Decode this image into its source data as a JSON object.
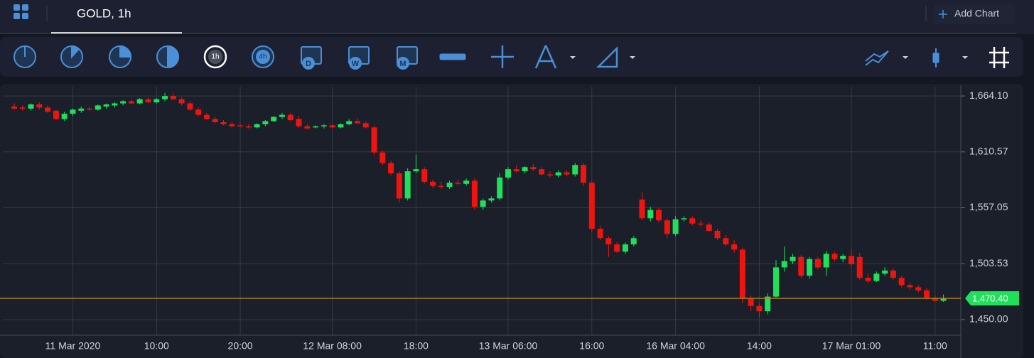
{
  "header": {
    "tab": "GOLD, 1h",
    "add_chart": "Add Chart"
  },
  "toolbar": {
    "labels": [
      "1h",
      "4h",
      "D",
      "W",
      "M"
    ]
  },
  "chart_data": {
    "type": "candlestick",
    "categories": [
      null,
      null,
      null,
      null,
      null,
      null,
      null,
      "11 Mar 2020",
      null,
      null,
      null,
      null,
      null,
      null,
      null,
      null,
      null,
      "10:00",
      null,
      null,
      null,
      null,
      null,
      null,
      null,
      null,
      null,
      "20:00",
      null,
      null,
      null,
      null,
      null,
      null,
      null,
      null,
      null,
      null,
      "12 Mar 08:00",
      null,
      null,
      null,
      null,
      null,
      null,
      null,
      null,
      null,
      "18:00",
      null,
      null,
      null,
      null,
      null,
      null,
      null,
      null,
      null,
      null,
      "13 Mar 06:00",
      null,
      null,
      null,
      null,
      null,
      null,
      null,
      null,
      null,
      "16:00",
      null,
      null,
      null,
      null,
      null,
      null,
      null,
      null,
      null,
      "16 Mar 04:00",
      null,
      null,
      null,
      null,
      null,
      null,
      null,
      null,
      null,
      "14:00",
      null,
      null,
      null,
      null,
      null,
      null,
      null,
      null,
      null,
      null,
      "17 Mar 01:00",
      null,
      null,
      null,
      null,
      null,
      null,
      null,
      null,
      null,
      "11:00",
      null
    ],
    "ohlc": [
      [
        1654,
        1657,
        1651,
        1652
      ],
      [
        1653,
        1655,
        1650,
        1652
      ],
      [
        1652,
        1657,
        1650,
        1656
      ],
      [
        1656,
        1658,
        1651,
        1653
      ],
      [
        1653,
        1655,
        1648,
        1649
      ],
      [
        1650,
        1651,
        1641,
        1642
      ],
      [
        1642,
        1649,
        1640,
        1647
      ],
      [
        1647,
        1652,
        1645,
        1651
      ],
      [
        1650,
        1654,
        1648,
        1652
      ],
      [
        1652,
        1654,
        1650,
        1651
      ],
      [
        1651,
        1656,
        1650,
        1655
      ],
      [
        1654,
        1657,
        1652,
        1656
      ],
      [
        1655,
        1658,
        1653,
        1657
      ],
      [
        1657,
        1660,
        1655,
        1659
      ],
      [
        1659,
        1661,
        1656,
        1657
      ],
      [
        1657,
        1662,
        1656,
        1661
      ],
      [
        1661,
        1663,
        1657,
        1658
      ],
      [
        1658,
        1662,
        1657,
        1661
      ],
      [
        1661,
        1667,
        1659,
        1664
      ],
      [
        1664,
        1667,
        1660,
        1661
      ],
      [
        1661,
        1663,
        1655,
        1657
      ],
      [
        1657,
        1659,
        1650,
        1651
      ],
      [
        1651,
        1653,
        1645,
        1646
      ],
      [
        1646,
        1648,
        1641,
        1642
      ],
      [
        1642,
        1644,
        1638,
        1639
      ],
      [
        1639,
        1641,
        1636,
        1637
      ],
      [
        1637,
        1639,
        1634,
        1635
      ],
      [
        1636,
        1638,
        1634,
        1635
      ],
      [
        1635,
        1637,
        1633,
        1634
      ],
      [
        1634,
        1638,
        1633,
        1637
      ],
      [
        1637,
        1641,
        1635,
        1640
      ],
      [
        1640,
        1645,
        1639,
        1644
      ],
      [
        1644,
        1648,
        1642,
        1646
      ],
      [
        1646,
        1648,
        1640,
        1641
      ],
      [
        1642,
        1645,
        1633,
        1635
      ],
      [
        1635,
        1637,
        1632,
        1633
      ],
      [
        1634,
        1636,
        1633,
        1635
      ],
      [
        1635,
        1637,
        1633,
        1636
      ],
      [
        1636,
        1637,
        1633,
        1634
      ],
      [
        1634,
        1638,
        1633,
        1637
      ],
      [
        1637,
        1642,
        1636,
        1640
      ],
      [
        1640,
        1643,
        1637,
        1638
      ],
      [
        1638,
        1640,
        1633,
        1634
      ],
      [
        1634,
        1636,
        1608,
        1610
      ],
      [
        1610,
        1612,
        1598,
        1600
      ],
      [
        1600,
        1602,
        1588,
        1590
      ],
      [
        1590,
        1592,
        1562,
        1566
      ],
      [
        1566,
        1595,
        1564,
        1592
      ],
      [
        1592,
        1608,
        1590,
        1594
      ],
      [
        1594,
        1596,
        1580,
        1582
      ],
      [
        1582,
        1584,
        1576,
        1578
      ],
      [
        1578,
        1582,
        1575,
        1577
      ],
      [
        1577,
        1583,
        1575,
        1581
      ],
      [
        1581,
        1584,
        1579,
        1580
      ],
      [
        1580,
        1585,
        1578,
        1583
      ],
      [
        1583,
        1585,
        1555,
        1558
      ],
      [
        1558,
        1566,
        1555,
        1564
      ],
      [
        1564,
        1568,
        1562,
        1566
      ],
      [
        1566,
        1590,
        1564,
        1586
      ],
      [
        1586,
        1596,
        1584,
        1594
      ],
      [
        1594,
        1598,
        1591,
        1592
      ],
      [
        1592,
        1597,
        1590,
        1596
      ],
      [
        1596,
        1599,
        1592,
        1594
      ],
      [
        1594,
        1596,
        1588,
        1589
      ],
      [
        1589,
        1592,
        1586,
        1588
      ],
      [
        1588,
        1593,
        1586,
        1591
      ],
      [
        1591,
        1593,
        1587,
        1589
      ],
      [
        1589,
        1600,
        1587,
        1598
      ],
      [
        1598,
        1600,
        1578,
        1581
      ],
      [
        1581,
        1583,
        1534,
        1537
      ],
      [
        1537,
        1540,
        1526,
        1528
      ],
      [
        1528,
        1530,
        1510,
        1522
      ],
      [
        1522,
        1524,
        1514,
        1515
      ],
      [
        1515,
        1524,
        1513,
        1522
      ],
      [
        1522,
        1530,
        1520,
        1528
      ],
      [
        1565,
        1572,
        1545,
        1547
      ],
      [
        1547,
        1558,
        1544,
        1555
      ],
      [
        1555,
        1557,
        1543,
        1545
      ],
      [
        1545,
        1547,
        1528,
        1532
      ],
      [
        1532,
        1549,
        1530,
        1546
      ],
      [
        1546,
        1549,
        1544,
        1547
      ],
      [
        1547,
        1549,
        1540,
        1542
      ],
      [
        1542,
        1545,
        1539,
        1541
      ],
      [
        1541,
        1543,
        1534,
        1535
      ],
      [
        1535,
        1537,
        1526,
        1528
      ],
      [
        1528,
        1531,
        1520,
        1522
      ],
      [
        1522,
        1526,
        1514,
        1517
      ],
      [
        1517,
        1519,
        1466,
        1470
      ],
      [
        1470,
        1473,
        1458,
        1463
      ],
      [
        1463,
        1466,
        1452,
        1458
      ],
      [
        1458,
        1475,
        1455,
        1472
      ],
      [
        1472,
        1507,
        1470,
        1500
      ],
      [
        1500,
        1520,
        1496,
        1506
      ],
      [
        1506,
        1513,
        1503,
        1510
      ],
      [
        1510,
        1512,
        1490,
        1492
      ],
      [
        1492,
        1510,
        1489,
        1508
      ],
      [
        1508,
        1510,
        1498,
        1500
      ],
      [
        1500,
        1516,
        1492,
        1513
      ],
      [
        1513,
        1515,
        1506,
        1508
      ],
      [
        1508,
        1513,
        1505,
        1511
      ],
      [
        1511,
        1517,
        1501,
        1503
      ],
      [
        1510,
        1514,
        1488,
        1490
      ],
      [
        1490,
        1494,
        1485,
        1487
      ],
      [
        1487,
        1496,
        1486,
        1494
      ],
      [
        1494,
        1500,
        1492,
        1497
      ],
      [
        1497,
        1499,
        1488,
        1490
      ],
      [
        1490,
        1492,
        1481,
        1483
      ],
      [
        1483,
        1485,
        1479,
        1481
      ],
      [
        1481,
        1483,
        1476,
        1478
      ],
      [
        1478,
        1480,
        1469,
        1471
      ],
      [
        1471,
        1473,
        1467,
        1468
      ],
      [
        1468,
        1474,
        1467,
        1470.4
      ]
    ],
    "up_color": "#1fe05a",
    "down_color": "#f0140f",
    "ylim": [
      1435,
      1673
    ],
    "yticks": [
      {
        "value": 1450,
        "label": "1,450.00"
      },
      {
        "value": 1503.53,
        "label": "1,503.53"
      },
      {
        "value": 1557.05,
        "label": "1,557.05"
      },
      {
        "value": 1610.57,
        "label": "1,610.57"
      },
      {
        "value": 1664.1,
        "label": "1,664.10"
      }
    ],
    "price_line": {
      "value": 1470.4,
      "label": "1,470.40",
      "color": "#b07d1a"
    },
    "grid": true
  }
}
